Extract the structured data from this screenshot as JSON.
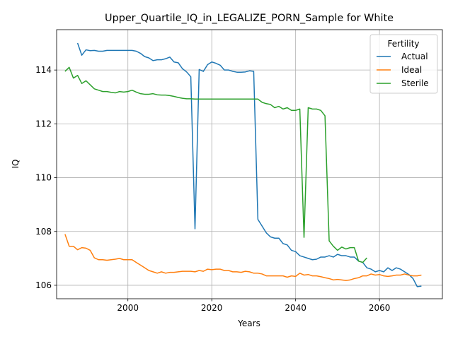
{
  "chart_data": {
    "type": "line",
    "title": "Upper_Quartile_IQ_in_LEGALIZE_PORN_Sample for White",
    "xlabel": "Years",
    "ylabel": "IQ",
    "xlim": [
      1983,
      2075
    ],
    "ylim": [
      105.5,
      115.5
    ],
    "xticks": [
      2000,
      2020,
      2040,
      2060
    ],
    "yticks": [
      106,
      108,
      110,
      112,
      114
    ],
    "grid": true,
    "legend": {
      "title": "Fertility",
      "placement": "top-right"
    },
    "series": [
      {
        "name": "Actual",
        "color": "#1f77b4",
        "points": [
          [
            2023,
            114.0
          ],
          [
            2024,
            114.0
          ],
          [
            2025,
            113.95
          ],
          [
            2026,
            113.92
          ],
          [
            2027,
            113.92
          ],
          [
            2028,
            113.93
          ],
          [
            2029,
            113.97
          ],
          [
            2030,
            113.95
          ],
          [
            2031,
            108.45
          ],
          [
            2032,
            108.2
          ],
          [
            2033,
            107.95
          ],
          [
            2034,
            107.8
          ],
          [
            2035,
            107.75
          ],
          [
            2036,
            107.75
          ],
          [
            2037,
            107.55
          ],
          [
            2038,
            107.5
          ],
          [
            2039,
            107.3
          ],
          [
            2040,
            107.25
          ],
          [
            2041,
            107.1
          ],
          [
            2042,
            107.05
          ],
          [
            2043,
            107.0
          ],
          [
            2044,
            106.95
          ],
          [
            2045,
            106.97
          ],
          [
            2046,
            107.05
          ],
          [
            2047,
            107.05
          ],
          [
            2048,
            107.1
          ],
          [
            2049,
            107.05
          ],
          [
            2050,
            107.15
          ],
          [
            2051,
            107.1
          ],
          [
            2052,
            107.1
          ],
          [
            2053,
            107.05
          ],
          [
            2054,
            107.05
          ],
          [
            2055,
            106.9
          ],
          [
            2056,
            106.85
          ],
          [
            2057,
            106.65
          ],
          [
            2058,
            106.6
          ],
          [
            2059,
            106.5
          ],
          [
            2060,
            106.55
          ],
          [
            2061,
            106.5
          ],
          [
            2062,
            106.65
          ],
          [
            2063,
            106.55
          ],
          [
            2064,
            106.65
          ],
          [
            2065,
            106.6
          ],
          [
            2066,
            106.5
          ],
          [
            2067,
            106.4
          ],
          [
            2068,
            106.25
          ],
          [
            2069,
            105.95
          ],
          [
            2070,
            105.97
          ]
        ],
        "points_early": [
          [
            1988,
            115.0
          ],
          [
            1989,
            114.55
          ],
          [
            1990,
            114.75
          ],
          [
            1991,
            114.72
          ],
          [
            1992,
            114.73
          ],
          [
            1993,
            114.7
          ],
          [
            1994,
            114.7
          ],
          [
            1995,
            114.73
          ],
          [
            1996,
            114.73
          ],
          [
            1997,
            114.73
          ],
          [
            1998,
            114.73
          ],
          [
            1999,
            114.73
          ],
          [
            2000,
            114.73
          ],
          [
            2001,
            114.73
          ],
          [
            2002,
            114.7
          ],
          [
            2003,
            114.62
          ],
          [
            2004,
            114.5
          ],
          [
            2005,
            114.45
          ],
          [
            2006,
            114.35
          ],
          [
            2007,
            114.38
          ],
          [
            2008,
            114.38
          ],
          [
            2009,
            114.42
          ],
          [
            2010,
            114.48
          ],
          [
            2011,
            114.3
          ],
          [
            2012,
            114.27
          ],
          [
            2013,
            114.05
          ],
          [
            2014,
            113.93
          ],
          [
            2015,
            113.75
          ],
          [
            2016,
            108.1
          ],
          [
            2017,
            114.02
          ],
          [
            2018,
            113.95
          ],
          [
            2019,
            114.2
          ],
          [
            2020,
            114.3
          ],
          [
            2021,
            114.25
          ],
          [
            2022,
            114.18
          ]
        ]
      },
      {
        "name": "Ideal",
        "color": "#ff7f0e",
        "points": [
          [
            1985,
            107.9
          ],
          [
            1986,
            107.45
          ],
          [
            1987,
            107.45
          ],
          [
            1988,
            107.32
          ],
          [
            1989,
            107.4
          ],
          [
            1990,
            107.38
          ],
          [
            1991,
            107.3
          ],
          [
            1992,
            107.02
          ],
          [
            1993,
            106.95
          ],
          [
            1994,
            106.95
          ],
          [
            1995,
            106.93
          ],
          [
            1996,
            106.95
          ],
          [
            1997,
            106.97
          ],
          [
            1998,
            107.0
          ],
          [
            1999,
            106.95
          ],
          [
            2000,
            106.95
          ],
          [
            2001,
            106.95
          ],
          [
            2002,
            106.85
          ],
          [
            2003,
            106.75
          ],
          [
            2004,
            106.65
          ],
          [
            2005,
            106.55
          ],
          [
            2006,
            106.5
          ],
          [
            2007,
            106.45
          ],
          [
            2008,
            106.5
          ],
          [
            2009,
            106.45
          ],
          [
            2010,
            106.48
          ],
          [
            2011,
            106.48
          ],
          [
            2012,
            106.5
          ],
          [
            2013,
            106.52
          ],
          [
            2014,
            106.52
          ],
          [
            2015,
            106.52
          ],
          [
            2016,
            106.5
          ],
          [
            2017,
            106.55
          ],
          [
            2018,
            106.52
          ],
          [
            2019,
            106.6
          ],
          [
            2020,
            106.58
          ],
          [
            2021,
            106.6
          ],
          [
            2022,
            106.6
          ],
          [
            2023,
            106.55
          ],
          [
            2024,
            106.55
          ],
          [
            2025,
            106.5
          ],
          [
            2026,
            106.5
          ],
          [
            2027,
            106.48
          ],
          [
            2028,
            106.52
          ],
          [
            2029,
            106.5
          ],
          [
            2030,
            106.45
          ],
          [
            2031,
            106.45
          ],
          [
            2032,
            106.42
          ],
          [
            2033,
            106.35
          ],
          [
            2034,
            106.35
          ],
          [
            2035,
            106.35
          ],
          [
            2036,
            106.35
          ],
          [
            2037,
            106.35
          ],
          [
            2038,
            106.3
          ],
          [
            2039,
            106.35
          ],
          [
            2040,
            106.33
          ],
          [
            2041,
            106.45
          ],
          [
            2042,
            106.38
          ],
          [
            2043,
            106.4
          ],
          [
            2044,
            106.35
          ],
          [
            2045,
            106.35
          ],
          [
            2046,
            106.32
          ],
          [
            2047,
            106.28
          ],
          [
            2048,
            106.25
          ],
          [
            2049,
            106.2
          ],
          [
            2050,
            106.22
          ],
          [
            2051,
            106.2
          ],
          [
            2052,
            106.18
          ],
          [
            2053,
            106.2
          ],
          [
            2054,
            106.25
          ],
          [
            2055,
            106.28
          ],
          [
            2056,
            106.35
          ],
          [
            2057,
            106.35
          ],
          [
            2058,
            106.42
          ],
          [
            2059,
            106.38
          ],
          [
            2060,
            106.4
          ],
          [
            2061,
            106.35
          ],
          [
            2062,
            106.33
          ],
          [
            2063,
            106.35
          ],
          [
            2064,
            106.38
          ],
          [
            2065,
            106.38
          ],
          [
            2066,
            106.42
          ],
          [
            2067,
            106.38
          ],
          [
            2068,
            106.35
          ],
          [
            2069,
            106.35
          ],
          [
            2070,
            106.38
          ]
        ]
      },
      {
        "name": "Sterile",
        "color": "#2ca02c",
        "points": [
          [
            1985,
            113.95
          ],
          [
            1986,
            114.1
          ],
          [
            1987,
            113.7
          ],
          [
            1988,
            113.8
          ],
          [
            1989,
            113.5
          ],
          [
            1990,
            113.6
          ],
          [
            1991,
            113.45
          ],
          [
            1992,
            113.3
          ],
          [
            1993,
            113.25
          ],
          [
            1994,
            113.2
          ],
          [
            1995,
            113.2
          ],
          [
            1996,
            113.17
          ],
          [
            1997,
            113.15
          ],
          [
            1998,
            113.2
          ],
          [
            1999,
            113.18
          ],
          [
            2000,
            113.2
          ],
          [
            2001,
            113.25
          ],
          [
            2002,
            113.18
          ],
          [
            2003,
            113.12
          ],
          [
            2004,
            113.1
          ],
          [
            2005,
            113.1
          ],
          [
            2006,
            113.12
          ],
          [
            2007,
            113.08
          ],
          [
            2008,
            113.07
          ],
          [
            2009,
            113.07
          ],
          [
            2010,
            113.05
          ],
          [
            2011,
            113.02
          ],
          [
            2012,
            112.98
          ],
          [
            2013,
            112.95
          ],
          [
            2014,
            112.93
          ],
          [
            2015,
            112.93
          ],
          [
            2016,
            112.92
          ],
          [
            2017,
            112.92
          ],
          [
            2018,
            112.92
          ],
          [
            2019,
            112.92
          ],
          [
            2020,
            112.92
          ],
          [
            2021,
            112.92
          ],
          [
            2022,
            112.92
          ],
          [
            2023,
            112.92
          ],
          [
            2024,
            112.92
          ],
          [
            2025,
            112.92
          ],
          [
            2026,
            112.92
          ],
          [
            2027,
            112.92
          ],
          [
            2028,
            112.92
          ],
          [
            2029,
            112.92
          ],
          [
            2030,
            112.92
          ],
          [
            2031,
            112.92
          ],
          [
            2032,
            112.8
          ],
          [
            2033,
            112.75
          ],
          [
            2034,
            112.72
          ],
          [
            2035,
            112.6
          ],
          [
            2036,
            112.65
          ],
          [
            2037,
            112.55
          ],
          [
            2038,
            112.6
          ],
          [
            2039,
            112.5
          ],
          [
            2040,
            112.5
          ],
          [
            2041,
            112.55
          ],
          [
            2042,
            107.78
          ],
          [
            2043,
            112.6
          ],
          [
            2044,
            112.55
          ],
          [
            2045,
            112.55
          ],
          [
            2046,
            112.5
          ],
          [
            2047,
            112.3
          ],
          [
            2048,
            107.65
          ],
          [
            2049,
            107.45
          ],
          [
            2050,
            107.3
          ],
          [
            2051,
            107.42
          ],
          [
            2052,
            107.35
          ],
          [
            2053,
            107.4
          ],
          [
            2054,
            107.4
          ],
          [
            2055,
            106.9
          ],
          [
            2056,
            106.85
          ],
          [
            2057,
            107.02
          ]
        ]
      }
    ]
  }
}
